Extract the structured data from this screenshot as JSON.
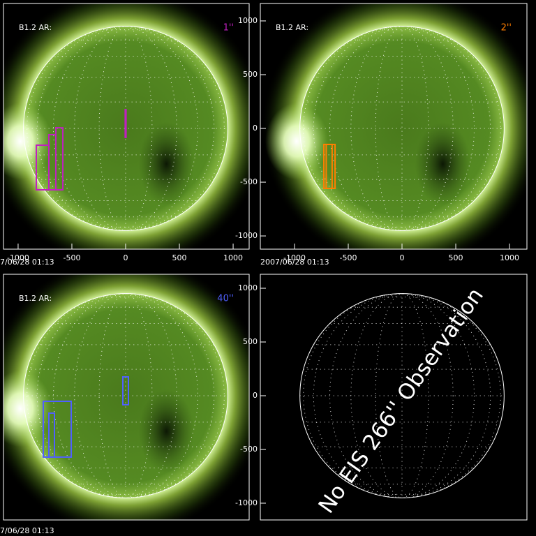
{
  "chart_data": [
    {
      "type": "sun",
      "label": "B1.2 AR:",
      "resolution": "1''",
      "resolution_color": "#c020c0",
      "timestamp": "7/06/28 01:13",
      "xlim": [
        -1136,
        1149
      ],
      "ylim": [
        -1123,
        1162
      ],
      "xticks": [
        -1000,
        -500,
        0,
        500,
        1000
      ]
    },
    {
      "type": "sun",
      "label": "B1.2 AR:",
      "resolution": "2''",
      "resolution_color": "#ff7f00",
      "timestamp": "2007/06/28 01:13",
      "xlim": [
        -1318,
        1162
      ],
      "ylim": [
        -1123,
        1162
      ],
      "xticks": [
        -1000,
        -500,
        0,
        500,
        1000
      ],
      "yticks": [
        -1000,
        -500,
        0,
        500,
        1000
      ]
    },
    {
      "type": "sun",
      "label": "B1.2 AR:",
      "resolution": "40''",
      "resolution_color": "#5060ff",
      "timestamp": "7/06/28 01:13",
      "xlim": [
        -1136,
        1149
      ],
      "ylim": [
        -1156,
        1130
      ]
    },
    {
      "type": "grid",
      "text": "No EIS 266'' Observation",
      "xlim": [
        -1318,
        1162
      ],
      "ylim": [
        -1156,
        1130
      ],
      "yticks": [
        -1000,
        -500,
        0,
        500,
        1000
      ]
    }
  ]
}
